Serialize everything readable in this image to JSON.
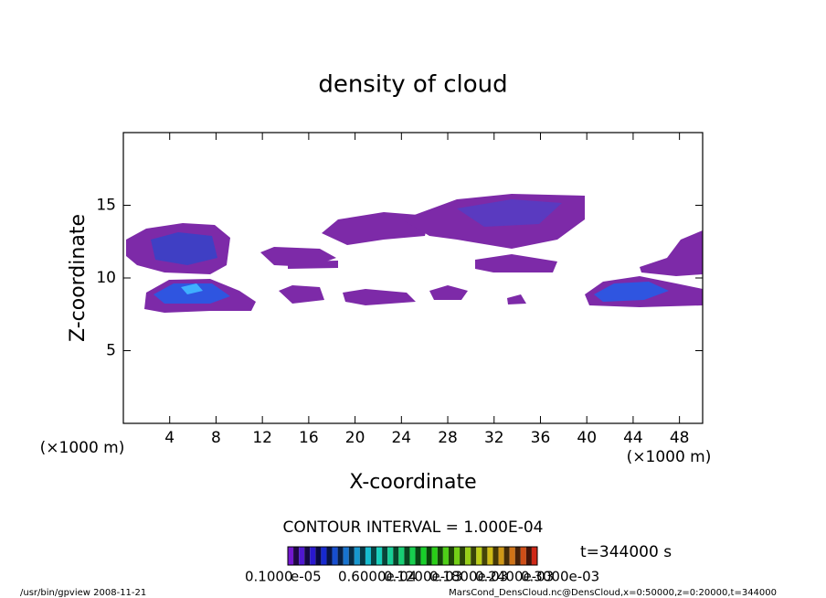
{
  "chart_data": {
    "type": "contour",
    "title": "density of cloud",
    "x_label": "X-coordinate",
    "y_label": "Z-coordinate",
    "x_unit": "(×1000 m)",
    "y_unit": "(×1000 m)",
    "xlim": [
      0,
      50
    ],
    "ylim": [
      0,
      20
    ],
    "xticks": [
      4,
      8,
      12,
      16,
      20,
      24,
      28,
      32,
      36,
      40,
      44,
      48
    ],
    "yticks": [
      5,
      10,
      15
    ],
    "contour_interval": "CONTOUR INTERVAL = 1.000E-04",
    "time": "t=344000 s",
    "colorbar_labels": [
      "0.1000",
      "e-05",
      "0.6000e-04",
      "0.1200e-03",
      "0.1800e-03",
      "0.2400e-03",
      "0.3000e-03"
    ],
    "footer_left": "/usr/bin/gpview  2008-11-21",
    "footer_right": "MarsCond_DensCloud.nc@DensCloud,x=0:50000,z=0:20000,t=344000"
  }
}
